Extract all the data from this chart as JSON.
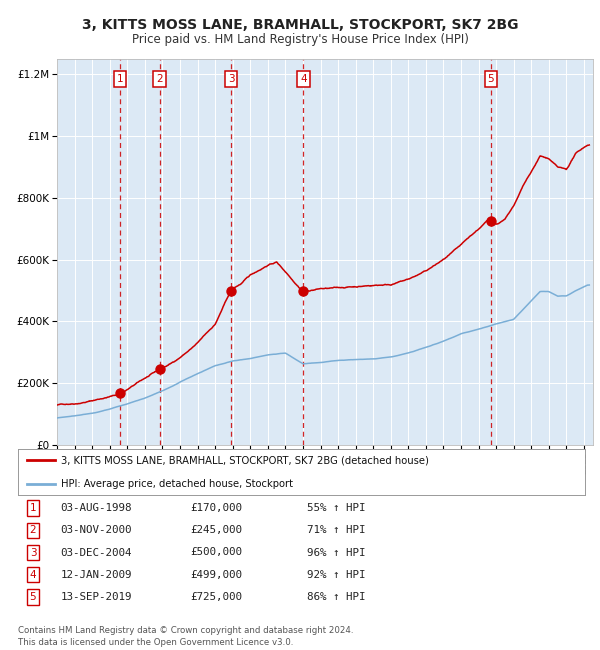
{
  "title": "3, KITTS MOSS LANE, BRAMHALL, STOCKPORT, SK7 2BG",
  "subtitle": "Price paid vs. HM Land Registry's House Price Index (HPI)",
  "title_fontsize": 10,
  "subtitle_fontsize": 8.5,
  "bg_color": "#dce9f5",
  "red_line_color": "#cc0000",
  "blue_line_color": "#7aaed6",
  "grid_color": "#ffffff",
  "sale_dates_x": [
    1998.58,
    2000.84,
    2004.92,
    2009.03,
    2019.7
  ],
  "sale_prices": [
    170000,
    245000,
    500000,
    499000,
    725000
  ],
  "sale_labels": [
    "1",
    "2",
    "3",
    "4",
    "5"
  ],
  "vline_color": "#cc0000",
  "ylim": [
    0,
    1250000
  ],
  "xlim_start": 1995,
  "xlim_end": 2025.5,
  "footer": "Contains HM Land Registry data © Crown copyright and database right 2024.\nThis data is licensed under the Open Government Licence v3.0.",
  "legend_label_red": "3, KITTS MOSS LANE, BRAMHALL, STOCKPORT, SK7 2BG (detached house)",
  "legend_label_blue": "HPI: Average price, detached house, Stockport",
  "table_rows": [
    [
      "1",
      "03-AUG-1998",
      "£170,000",
      "55% ↑ HPI"
    ],
    [
      "2",
      "03-NOV-2000",
      "£245,000",
      "71% ↑ HPI"
    ],
    [
      "3",
      "03-DEC-2004",
      "£500,000",
      "96% ↑ HPI"
    ],
    [
      "4",
      "12-JAN-2009",
      "£499,000",
      "92% ↑ HPI"
    ],
    [
      "5",
      "13-SEP-2019",
      "£725,000",
      "86% ↑ HPI"
    ]
  ]
}
